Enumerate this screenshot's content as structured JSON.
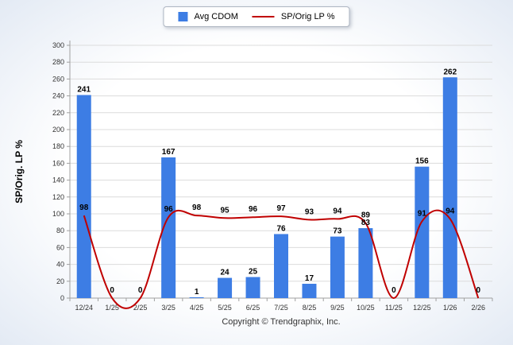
{
  "legend": {
    "items": [
      {
        "label": "Avg CDOM",
        "type": "bar",
        "color": "#3d7de4"
      },
      {
        "label": "SP/Orig LP %",
        "type": "line",
        "color": "#c00000"
      }
    ]
  },
  "ylabel": "SP/Orig. LP %",
  "copyright": "Copyright © Trendgraphix, Inc.",
  "chart_data": {
    "type": "combo",
    "categories": [
      "12/24",
      "1/25",
      "2/25",
      "3/25",
      "4/25",
      "5/25",
      "6/25",
      "7/25",
      "8/25",
      "9/25",
      "10/25",
      "11/25",
      "12/25",
      "1/26",
      "2/26"
    ],
    "series": [
      {
        "name": "Avg CDOM",
        "type": "bar",
        "color": "#3d7de4",
        "values": [
          241,
          0,
          0,
          167,
          1,
          24,
          25,
          76,
          17,
          73,
          83,
          0,
          156,
          262,
          0
        ]
      },
      {
        "name": "SP/Orig LP %",
        "type": "line",
        "color": "#c00000",
        "values": [
          98,
          0,
          0,
          96,
          98,
          95,
          96,
          97,
          93,
          94,
          89,
          0,
          91,
          94,
          0
        ]
      }
    ],
    "title": "",
    "xlabel": "",
    "ylabel": "SP/Orig. LP %",
    "ylim": [
      0,
      300
    ],
    "yticks": [
      0,
      20,
      40,
      60,
      80,
      100,
      120,
      140,
      160,
      180,
      200,
      220,
      240,
      260,
      280,
      300
    ],
    "grid": true,
    "legend_position": "top"
  }
}
